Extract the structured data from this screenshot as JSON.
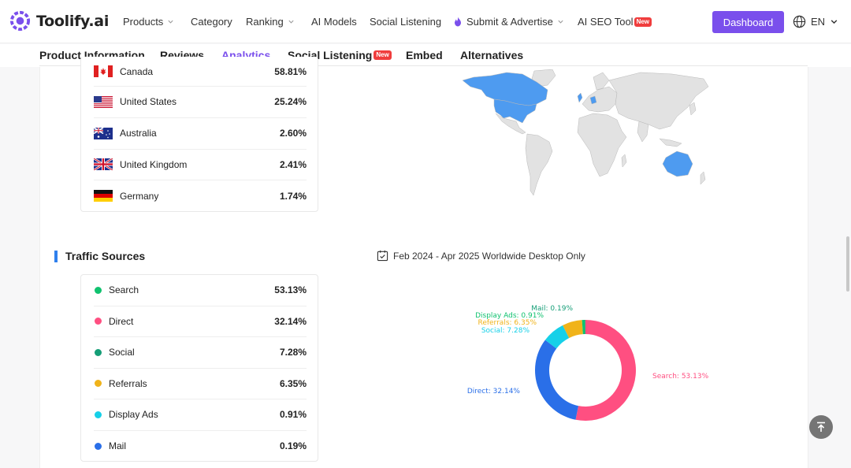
{
  "brand": {
    "name": "Toolify.ai",
    "accent": "#7a4fec"
  },
  "topnav": {
    "items": [
      {
        "label": "Products",
        "dropdown": true
      },
      {
        "label": "Category",
        "dropdown": false
      },
      {
        "label": "Ranking",
        "dropdown": true
      },
      {
        "label": "AI Models",
        "dropdown": false
      },
      {
        "label": "Social Listening",
        "dropdown": false
      },
      {
        "label": "Submit & Advertise",
        "dropdown": true,
        "icon": "flame-icon"
      },
      {
        "label": "AI SEO Tool",
        "badge": "New"
      }
    ],
    "dashboard_label": "Dashboard",
    "language": "EN"
  },
  "tabs": [
    {
      "label": "Product Information",
      "active": false
    },
    {
      "label": "Reviews",
      "active": false
    },
    {
      "label": "Analytics",
      "active": true
    },
    {
      "label": "Social Listening",
      "active": false,
      "badge": "New"
    },
    {
      "label": "Embed",
      "active": false
    },
    {
      "label": "Alternatives",
      "active": false
    }
  ],
  "countries": [
    {
      "name": "Canada",
      "value": "58.81%",
      "flag": "canada-flag-icon"
    },
    {
      "name": "United States",
      "value": "25.24%",
      "flag": "usa-flag-icon"
    },
    {
      "name": "Australia",
      "value": "2.60%",
      "flag": "australia-flag-icon"
    },
    {
      "name": "United Kingdom",
      "value": "2.41%",
      "flag": "uk-flag-icon"
    },
    {
      "name": "Germany",
      "value": "1.74%",
      "flag": "germany-flag-icon"
    }
  ],
  "traffic": {
    "title": "Traffic Sources",
    "date_range": "Feb 2024 - Apr 2025 Worldwide Desktop Only",
    "sources": [
      {
        "name": "Search",
        "value": "53.13%",
        "color": "#10c26f"
      },
      {
        "name": "Direct",
        "value": "32.14%",
        "color": "#ff4f81"
      },
      {
        "name": "Social",
        "value": "7.28%",
        "color": "#159e77"
      },
      {
        "name": "Referrals",
        "value": "6.35%",
        "color": "#f0b31a"
      },
      {
        "name": "Display Ads",
        "value": "0.91%",
        "color": "#16d0e8"
      },
      {
        "name": "Mail",
        "value": "0.19%",
        "color": "#2a6fe8"
      }
    ]
  },
  "chart_data": {
    "type": "pie",
    "categories": [
      "Search",
      "Direct",
      "Social",
      "Referrals",
      "Display Ads",
      "Mail"
    ],
    "values": [
      53.13,
      32.14,
      7.28,
      6.35,
      0.91,
      0.19
    ],
    "colors": [
      "#ff4f81",
      "#2a6fe8",
      "#16d0e8",
      "#f0b31a",
      "#10c26f",
      "#159e77"
    ],
    "labels": [
      "Search: 53.13%",
      "Direct: 32.14%",
      "Social: 7.28%",
      "Referrals: 6.35%",
      "Display Ads: 0.91%",
      "Mail: 0.19%"
    ]
  }
}
